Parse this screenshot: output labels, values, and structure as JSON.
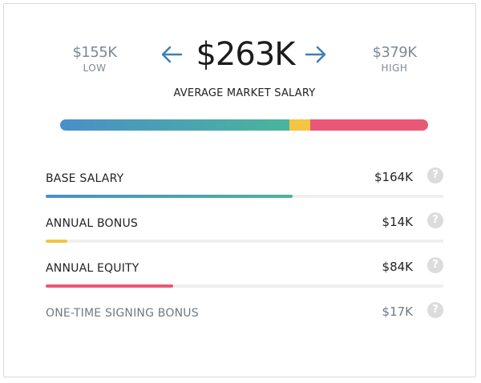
{
  "range": {
    "low": {
      "amount": "$155K",
      "caption": "LOW"
    },
    "high": {
      "amount": "$379K",
      "caption": "HIGH"
    },
    "average": {
      "amount": "$263K",
      "label": "AVERAGE MARKET SALARY"
    }
  },
  "components": [
    {
      "label": "BASE SALARY",
      "value": "$164K",
      "fill_fraction": 0.62
    },
    {
      "label": "ANNUAL BONUS",
      "value": "$14K",
      "fill_fraction": 0.055
    },
    {
      "label": "ANNUAL EQUITY",
      "value": "$84K",
      "fill_fraction": 0.32
    },
    {
      "label": "ONE-TIME SIGNING BONUS",
      "value": "$17K"
    }
  ],
  "help_glyph": "?",
  "colors": {
    "base": "#4a8fc9",
    "base_end": "#4ab59b",
    "bonus": "#f6c443",
    "equity": "#e95876",
    "arrow": "#3f7fb5"
  }
}
